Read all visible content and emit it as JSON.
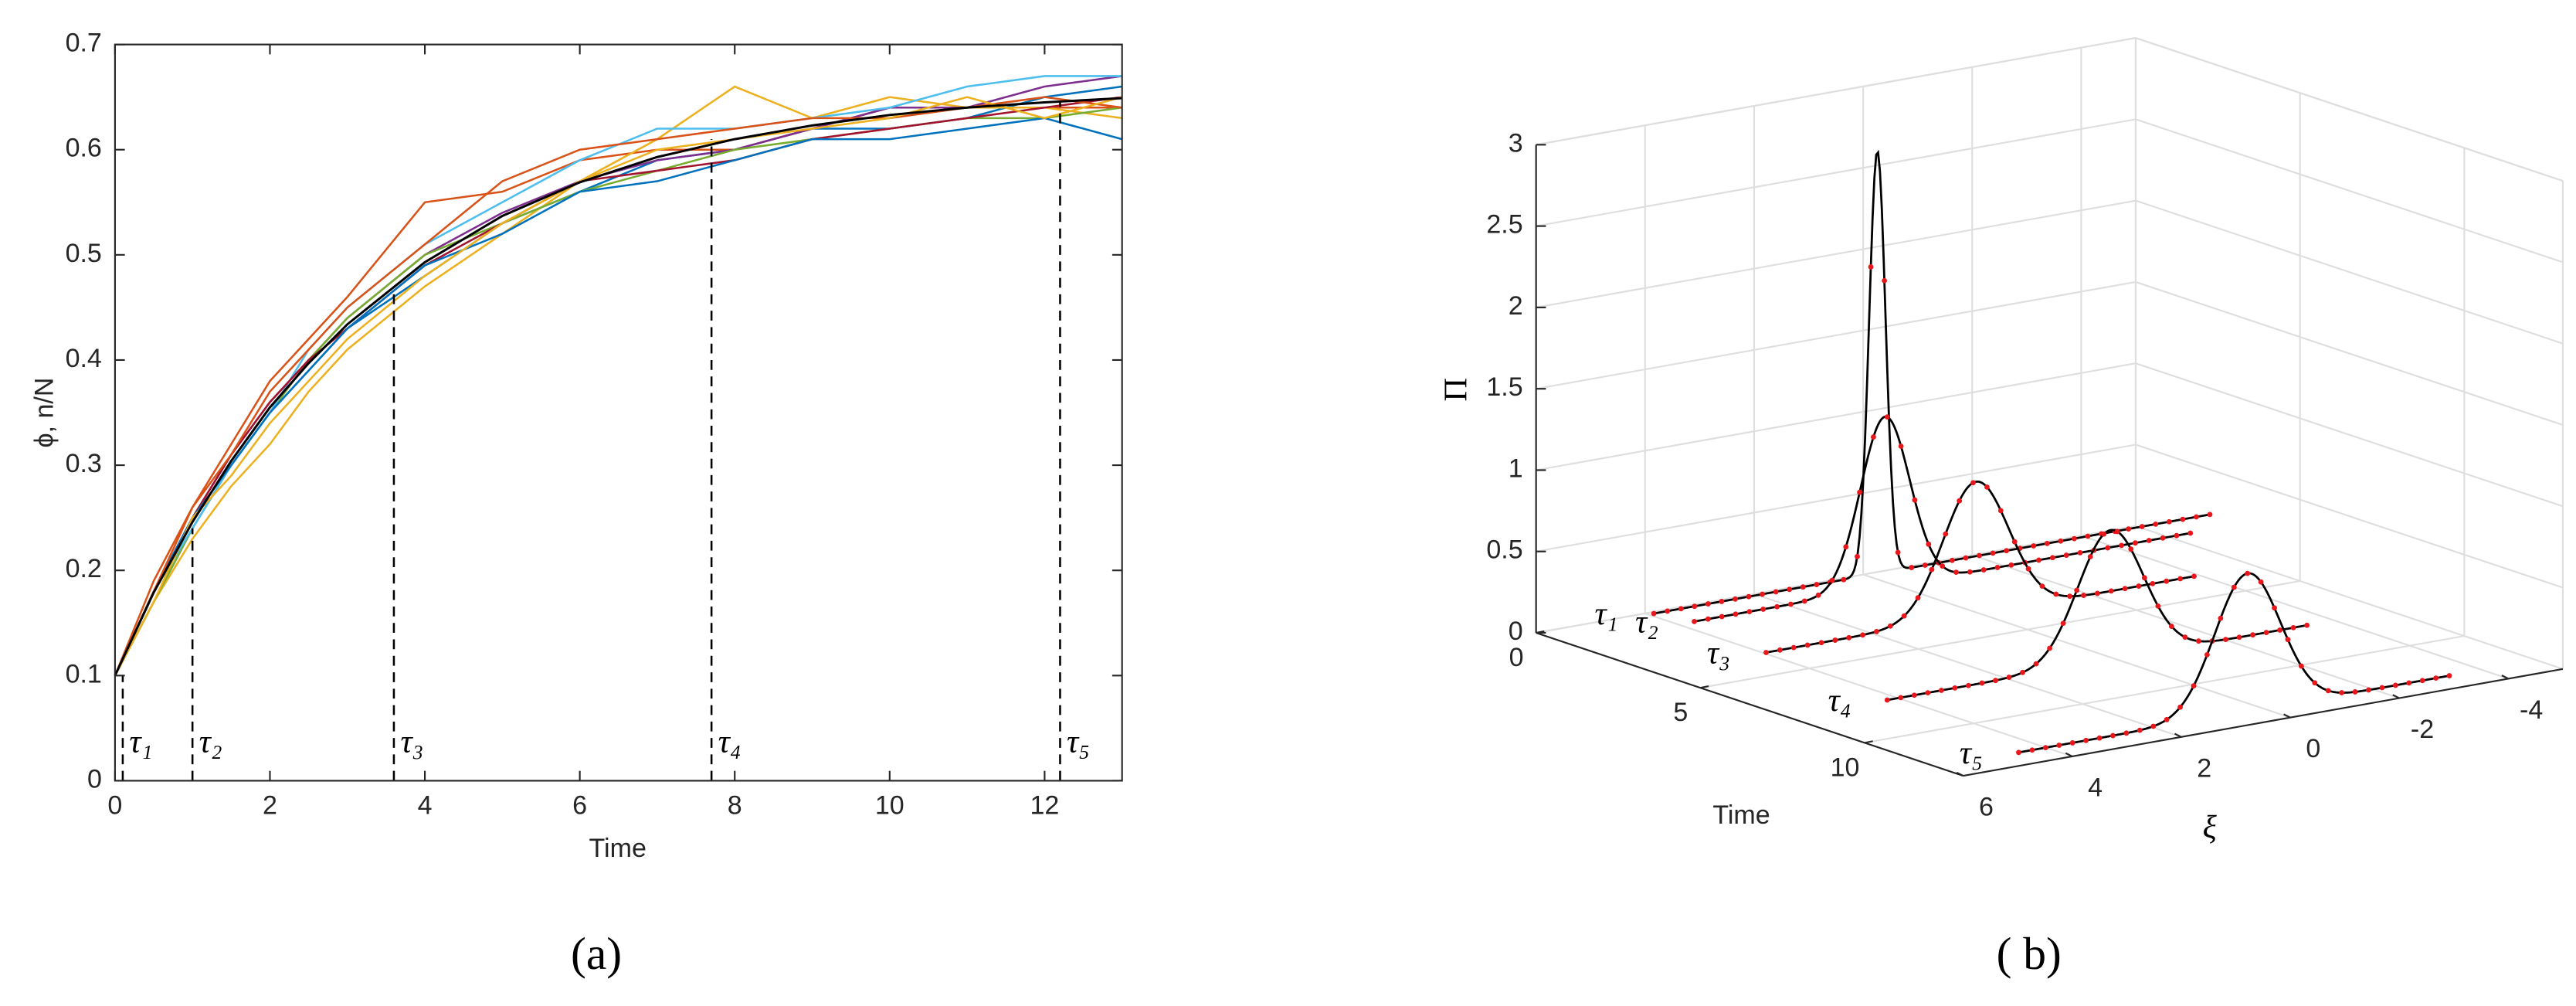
{
  "chart_data": [
    {
      "type": "line",
      "caption": "(a)",
      "xlabel": "Time",
      "ylabel": "ϕ, n/N",
      "xlim": [
        0,
        13
      ],
      "ylim": [
        0,
        0.7
      ],
      "xticks": [
        0,
        2,
        4,
        6,
        8,
        10,
        12
      ],
      "yticks": [
        0,
        0.1,
        0.2,
        0.3,
        0.4,
        0.5,
        0.6,
        0.7
      ],
      "x": [
        0,
        0.5,
        1,
        1.5,
        2,
        2.5,
        3,
        4,
        5,
        6,
        7,
        8,
        9,
        10,
        11,
        12,
        13
      ],
      "series": [
        {
          "color": "#0072BD",
          "values": [
            0.1,
            0.17,
            0.24,
            0.3,
            0.35,
            0.39,
            0.43,
            0.48,
            0.53,
            0.56,
            0.59,
            0.6,
            0.62,
            0.62,
            0.63,
            0.65,
            0.66
          ]
        },
        {
          "color": "#D95319",
          "values": [
            0.1,
            0.19,
            0.26,
            0.32,
            0.38,
            0.42,
            0.46,
            0.55,
            0.56,
            0.59,
            0.6,
            0.6,
            0.62,
            0.64,
            0.64,
            0.64,
            0.64
          ]
        },
        {
          "color": "#EDB120",
          "values": [
            0.1,
            0.17,
            0.23,
            0.28,
            0.32,
            0.37,
            0.41,
            0.47,
            0.52,
            0.57,
            0.61,
            0.66,
            0.63,
            0.65,
            0.64,
            0.64,
            0.63
          ]
        },
        {
          "color": "#7E2F8E",
          "values": [
            0.1,
            0.18,
            0.25,
            0.31,
            0.36,
            0.4,
            0.44,
            0.5,
            0.54,
            0.57,
            0.59,
            0.6,
            0.62,
            0.64,
            0.64,
            0.66,
            0.67
          ]
        },
        {
          "color": "#77AC30",
          "values": [
            0.1,
            0.17,
            0.24,
            0.3,
            0.35,
            0.4,
            0.44,
            0.5,
            0.53,
            0.56,
            0.58,
            0.6,
            0.61,
            0.62,
            0.63,
            0.63,
            0.64
          ]
        },
        {
          "color": "#4DBEEE",
          "values": [
            0.1,
            0.18,
            0.24,
            0.3,
            0.35,
            0.41,
            0.45,
            0.51,
            0.55,
            0.59,
            0.62,
            0.62,
            0.63,
            0.64,
            0.66,
            0.67,
            0.67
          ]
        },
        {
          "color": "#A2142F",
          "values": [
            0.1,
            0.18,
            0.25,
            0.31,
            0.36,
            0.4,
            0.43,
            0.49,
            0.53,
            0.57,
            0.58,
            0.59,
            0.61,
            0.62,
            0.63,
            0.64,
            0.65
          ]
        },
        {
          "color": "#0072BD",
          "values": [
            0.1,
            0.18,
            0.25,
            0.3,
            0.35,
            0.39,
            0.43,
            0.49,
            0.52,
            0.56,
            0.57,
            0.59,
            0.61,
            0.61,
            0.62,
            0.63,
            0.61
          ]
        },
        {
          "color": "#D95319",
          "values": [
            0.1,
            0.18,
            0.26,
            0.31,
            0.37,
            0.41,
            0.45,
            0.51,
            0.57,
            0.6,
            0.61,
            0.62,
            0.63,
            0.63,
            0.64,
            0.65,
            0.64
          ]
        },
        {
          "color": "#EDB120",
          "values": [
            0.1,
            0.17,
            0.25,
            0.29,
            0.34,
            0.38,
            0.42,
            0.48,
            0.53,
            0.57,
            0.6,
            0.61,
            0.62,
            0.63,
            0.65,
            0.63,
            0.65
          ]
        },
        {
          "color": "#000000",
          "values": [
            0.1,
            0.179,
            0.246,
            0.304,
            0.355,
            0.397,
            0.434,
            0.493,
            0.537,
            0.569,
            0.593,
            0.61,
            0.623,
            0.633,
            0.64,
            0.645,
            0.649
          ]
        }
      ],
      "markers": [
        {
          "x": 0.1,
          "y": 0.1,
          "label": "τ₁"
        },
        {
          "x": 1,
          "y": 0.24,
          "label": "τ₂"
        },
        {
          "x": 3.6,
          "y": 0.47,
          "label": "τ₃"
        },
        {
          "x": 7.7,
          "y": 0.61,
          "label": "τ₄"
        },
        {
          "x": 12.2,
          "y": 0.645,
          "label": "τ₅"
        }
      ]
    },
    {
      "type": "waterfall3d",
      "caption": "( b)",
      "xlabel": "Time",
      "ylabel": "ξ",
      "zlabel": "Π",
      "xlim": [
        0,
        13
      ],
      "ylim": [
        6,
        -5
      ],
      "zlim": [
        0,
        3
      ],
      "xticks": [
        0,
        5,
        10
      ],
      "yticks": [
        6,
        4,
        2,
        0,
        -2,
        -4
      ],
      "zticks": [
        0,
        0.5,
        1,
        1.5,
        2,
        2.5,
        3
      ],
      "line_color": "#000000",
      "dot_color": "#e8171b",
      "slices": [
        {
          "label": "τ₁",
          "time": 0.1,
          "xi_range": [
            3.9,
            -6.3
          ],
          "peak": 2.6,
          "mean": -0.2,
          "std": 0.15
        },
        {
          "label": "τ₂",
          "time": 1,
          "xi_range": [
            3.7,
            -5.4
          ],
          "peak": 1.05,
          "mean": 0.2,
          "std": 0.45
        },
        {
          "label": "τ₃",
          "time": 3.6,
          "xi_range": [
            3.95,
            -3.9
          ],
          "peak": 0.82,
          "mean": 0.1,
          "std": 0.6
        },
        {
          "label": "τ₄",
          "time": 7.7,
          "xi_range": [
            4.2,
            -3.5
          ],
          "peak": 0.8,
          "mean": 0.1,
          "std": 0.6
        },
        {
          "label": "τ₅",
          "time": 12.2,
          "xi_range": [
            4.5,
            -3.4
          ],
          "peak": 0.85,
          "mean": 0.3,
          "std": 0.6
        }
      ]
    }
  ]
}
